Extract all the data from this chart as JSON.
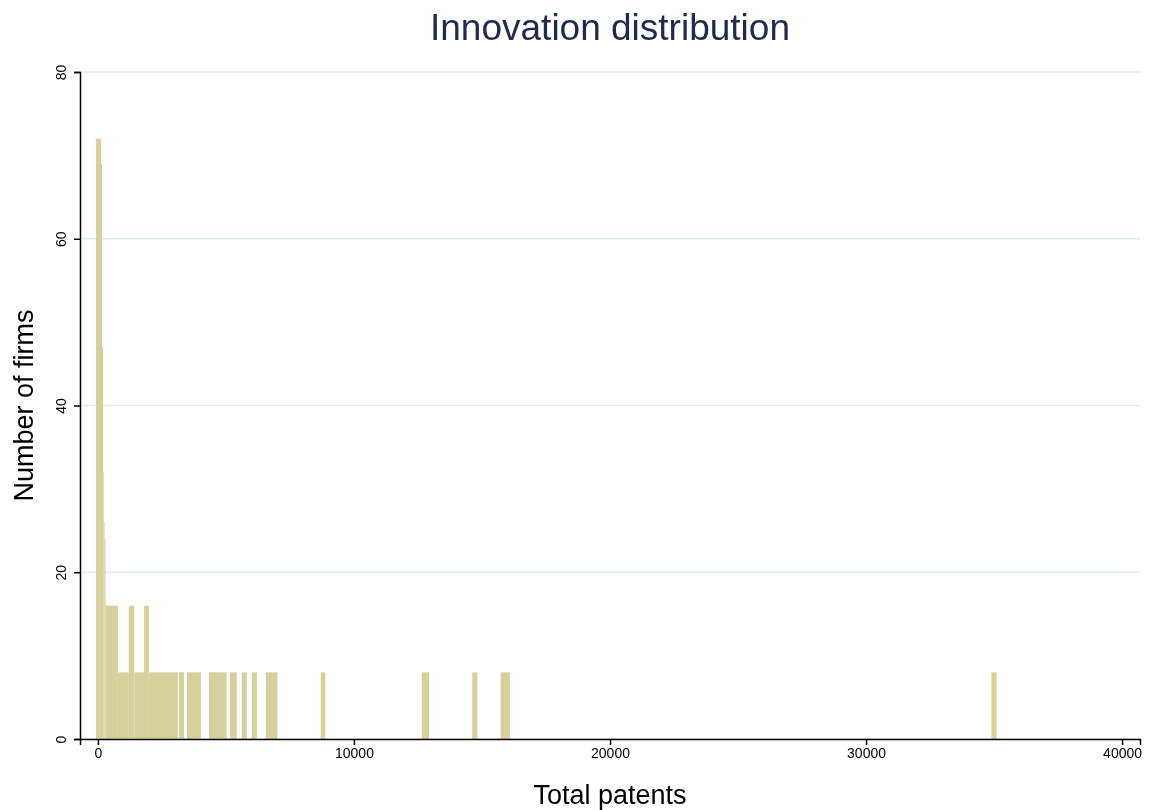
{
  "chart_data": {
    "type": "histogram",
    "title": "Innovation distribution",
    "xlabel": "Total patents",
    "ylabel": "Number of firms",
    "bins": [
      -80,
      120,
      160,
      200,
      230,
      260,
      300,
      780,
      1210,
      1420,
      1800,
      1990,
      3120,
      3160,
      3360,
      3480,
      4020,
      4340,
      5030,
      5160,
      5425,
      5620,
      5815,
      6010,
      6205,
      6555,
      7010,
      8700,
      8885,
      12645,
      12930,
      14620,
      14820,
      15725,
      16090,
      34900,
      35100
    ],
    "values": [
      72,
      69,
      47,
      32,
      26,
      24,
      16,
      8,
      16,
      8,
      16,
      8,
      0,
      8,
      0,
      8,
      0,
      8,
      0,
      8,
      0,
      8,
      0,
      8,
      0,
      8,
      0,
      8,
      0,
      8,
      0,
      8,
      0,
      8,
      0,
      8
    ],
    "color": "#d6d19c",
    "xlim": [
      -700,
      40700
    ],
    "xticks": [
      0,
      10000,
      20000,
      30000,
      40000
    ],
    "ylim": [
      0,
      80
    ],
    "yticks": [
      0,
      20,
      40,
      60,
      80
    ],
    "grid": "y"
  }
}
